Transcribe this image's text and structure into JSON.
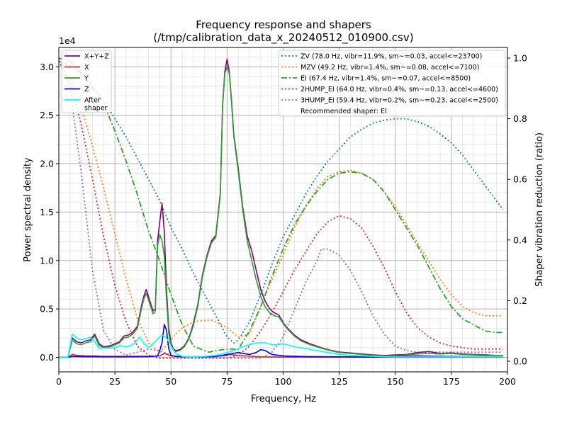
{
  "chart_data": {
    "type": "line",
    "title": [
      "Frequency response and shapers",
      "(/tmp/calibration_data_x_20240512_010900.csv)"
    ],
    "xlabel": "Frequency, Hz",
    "ylabel": "Power spectral density",
    "y2label": "Shaper vibration reduction (ratio)",
    "y_multiplier": "1e4",
    "xlim": [
      0,
      200
    ],
    "ylim": [
      -1500,
      32000
    ],
    "y2lim": [
      -0.035,
      1.035
    ],
    "xticks": [
      0,
      25,
      50,
      75,
      100,
      125,
      150,
      175,
      200
    ],
    "yticks": [
      0,
      5000,
      10000,
      15000,
      20000,
      25000,
      30000
    ],
    "ytick_labels": [
      "0.0",
      "0.5",
      "1.0",
      "1.5",
      "2.0",
      "2.5",
      "3.0"
    ],
    "y2ticks": [
      0,
      0.2,
      0.4,
      0.6,
      0.8,
      1.0
    ],
    "y2tick_labels": [
      "0.0",
      "0.2",
      "0.4",
      "0.6",
      "0.8",
      "1.0"
    ],
    "grid": true,
    "psd_legend_position": "top-left",
    "shaper_legend_position": "top-right",
    "psd_series": [
      {
        "name": "X+Y+Z",
        "color": "#800080",
        "width": 1.6,
        "x": [
          0,
          4,
          6,
          8,
          10,
          12,
          14,
          16,
          18,
          20,
          23,
          25,
          27,
          29,
          31,
          33,
          35,
          37,
          38,
          39,
          41,
          42,
          43,
          44,
          45,
          46,
          47,
          48,
          49,
          50,
          51,
          52,
          54,
          56,
          58,
          60,
          62,
          64,
          66,
          68,
          70,
          72,
          73,
          74,
          75,
          76,
          77,
          78,
          80,
          82,
          84,
          86,
          88,
          90,
          92,
          94,
          96,
          98,
          100,
          102,
          105,
          108,
          112,
          117,
          120,
          125,
          130,
          135,
          140,
          145,
          150,
          155,
          160,
          165,
          170,
          175,
          180,
          185,
          190,
          195,
          198
        ],
        "y": [
          0,
          0,
          2000,
          1600,
          1500,
          1700,
          1800,
          2400,
          1400,
          1100,
          1200,
          1400,
          1600,
          2200,
          2300,
          2600,
          3200,
          5500,
          6400,
          7000,
          5500,
          4800,
          5000,
          12000,
          14000,
          15900,
          13000,
          7000,
          3000,
          1500,
          900,
          700,
          800,
          1200,
          2000,
          3500,
          5500,
          8500,
          10500,
          12000,
          12600,
          17000,
          26000,
          29500,
          30800,
          29500,
          26500,
          23000,
          19500,
          15500,
          12500,
          11000,
          9000,
          7000,
          5800,
          5000,
          4600,
          4400,
          3600,
          3000,
          2300,
          1800,
          1400,
          1000,
          800,
          550,
          450,
          350,
          250,
          200,
          250,
          300,
          500,
          600,
          400,
          450,
          350,
          300,
          250,
          200,
          200
        ]
      },
      {
        "name": "X",
        "color": "#d62728",
        "width": 1.6,
        "x": [
          0,
          4,
          6,
          8,
          12,
          16,
          20,
          30,
          40,
          45,
          47,
          50,
          55,
          60,
          70,
          75,
          76,
          80,
          90,
          100,
          110,
          150,
          198
        ],
        "y": [
          0,
          0,
          300,
          200,
          150,
          150,
          100,
          100,
          100,
          150,
          400,
          150,
          50,
          50,
          100,
          200,
          300,
          200,
          50,
          30,
          20,
          10,
          0
        ]
      },
      {
        "name": "Y",
        "color": "#2ca02c",
        "width": 1.6,
        "x": [
          0,
          4,
          6,
          8,
          10,
          12,
          14,
          16,
          18,
          20,
          23,
          25,
          27,
          29,
          31,
          33,
          35,
          37,
          38,
          39,
          41,
          42,
          43,
          44,
          45,
          46,
          47,
          48,
          49,
          50,
          51,
          52,
          54,
          56,
          58,
          60,
          62,
          64,
          66,
          68,
          70,
          72,
          73,
          74,
          75,
          76,
          77,
          78,
          80,
          82,
          84,
          86,
          88,
          90,
          92,
          94,
          96,
          98,
          100,
          102,
          105,
          108,
          112,
          117,
          120,
          125,
          130,
          135,
          140,
          145,
          150,
          155,
          160,
          165,
          170,
          175,
          180,
          185,
          190,
          195,
          198
        ],
        "y": [
          0,
          0,
          1800,
          1400,
          1300,
          1500,
          1600,
          2200,
          1200,
          1000,
          1100,
          1300,
          1500,
          2000,
          2100,
          2400,
          3000,
          5200,
          6100,
          6600,
          5200,
          4500,
          4700,
          11500,
          12700,
          12000,
          10500,
          6000,
          2500,
          1200,
          750,
          600,
          700,
          1100,
          1900,
          3300,
          5300,
          8300,
          10300,
          11800,
          12400,
          16800,
          25800,
          29300,
          30000,
          29300,
          26300,
          22800,
          19200,
          15200,
          12000,
          10000,
          8000,
          6300,
          5200,
          4600,
          4300,
          4200,
          3500,
          2900,
          2200,
          1700,
          1300,
          950,
          750,
          500,
          400,
          300,
          200,
          150,
          200,
          250,
          350,
          400,
          350,
          400,
          300,
          250,
          200,
          200,
          200
        ]
      },
      {
        "name": "Z",
        "color": "#0000ff",
        "width": 1.6,
        "x": [
          0,
          4,
          6,
          10,
          20,
          30,
          40,
          44,
          45,
          46,
          47,
          48,
          49,
          50,
          52,
          55,
          60,
          70,
          75,
          80,
          85,
          88,
          90,
          92,
          95,
          100,
          110,
          120,
          140,
          150,
          160,
          170,
          180,
          198
        ],
        "y": [
          0,
          0,
          100,
          80,
          60,
          60,
          80,
          150,
          700,
          1500,
          3400,
          2800,
          900,
          200,
          100,
          80,
          60,
          80,
          300,
          500,
          300,
          500,
          800,
          700,
          300,
          150,
          80,
          60,
          40,
          100,
          150,
          100,
          80,
          50
        ]
      },
      {
        "name": "After\nshaper",
        "color": "#00ffff",
        "width": 1.6,
        "x": [
          0,
          4,
          6,
          8,
          10,
          12,
          14,
          16,
          18,
          20,
          22,
          25,
          27,
          30,
          32,
          34,
          36,
          38,
          40,
          42,
          44,
          46,
          48,
          50,
          52,
          55,
          58,
          60,
          65,
          70,
          75,
          78,
          80,
          82,
          85,
          88,
          90,
          92,
          95,
          98,
          100,
          105,
          110,
          115,
          120,
          125,
          130,
          140,
          150,
          160,
          170,
          180,
          190,
          198
        ],
        "y": [
          0,
          0,
          2400,
          2000,
          1800,
          1900,
          2100,
          1600,
          900,
          950,
          950,
          1000,
          1200,
          1100,
          1200,
          1500,
          2100,
          1400,
          1000,
          1400,
          1900,
          2300,
          2000,
          1200,
          400,
          100,
          50,
          50,
          100,
          200,
          500,
          700,
          900,
          1100,
          1300,
          1500,
          1500,
          1500,
          1300,
          1300,
          1400,
          1100,
          900,
          700,
          500,
          300,
          200,
          100,
          50,
          50,
          50,
          50,
          50,
          50
        ]
      }
    ],
    "shaper_series": [
      {
        "name": "ZV (78.0 Hz, vibr=11.9%, sm~=0.03, accel<=23700)",
        "color": "#1f77b4",
        "dash": "2,3",
        "x": [
          0,
          5,
          10,
          15,
          20,
          25,
          30,
          35,
          40,
          45,
          50,
          55,
          60,
          65,
          70,
          75,
          78,
          80,
          85,
          90,
          95,
          100,
          105,
          110,
          115,
          120,
          125,
          130,
          135,
          140,
          145,
          150,
          155,
          160,
          165,
          170,
          175,
          180,
          185,
          190,
          195,
          198
        ],
        "y": [
          0.99,
          0.975,
          0.945,
          0.91,
          0.86,
          0.8,
          0.74,
          0.67,
          0.6,
          0.53,
          0.44,
          0.37,
          0.29,
          0.22,
          0.15,
          0.08,
          0.06,
          0.07,
          0.13,
          0.22,
          0.32,
          0.41,
          0.48,
          0.55,
          0.61,
          0.66,
          0.7,
          0.74,
          0.765,
          0.785,
          0.795,
          0.8,
          0.8,
          0.79,
          0.775,
          0.75,
          0.72,
          0.68,
          0.63,
          0.58,
          0.53,
          0.5
        ]
      },
      {
        "name": "MZV (49.2 Hz, vibr=1.4%, sm~=0.08, accel<=7100)",
        "color": "#ff7f0e",
        "dash": "2,3",
        "x": [
          0,
          5,
          10,
          15,
          20,
          25,
          30,
          35,
          40,
          45,
          49,
          52,
          55,
          60,
          65,
          68,
          70,
          75,
          80,
          85,
          90,
          95,
          100,
          105,
          110,
          115,
          120,
          125,
          130,
          135,
          140,
          145,
          150,
          155,
          160,
          165,
          170,
          175,
          180,
          185,
          190,
          195,
          198
        ],
        "y": [
          0.99,
          0.94,
          0.84,
          0.71,
          0.57,
          0.42,
          0.27,
          0.14,
          0.06,
          0.03,
          0.06,
          0.09,
          0.11,
          0.13,
          0.135,
          0.135,
          0.13,
          0.11,
          0.08,
          0.09,
          0.18,
          0.27,
          0.35,
          0.44,
          0.51,
          0.57,
          0.61,
          0.625,
          0.63,
          0.62,
          0.6,
          0.56,
          0.51,
          0.45,
          0.39,
          0.33,
          0.27,
          0.22,
          0.18,
          0.16,
          0.15,
          0.15,
          0.15
        ]
      },
      {
        "name": "EI (67.4 Hz, vibr=1.4%, sm~=0.07, accel<=8500)",
        "color": "#2ca02c",
        "dash": "8,3,2,3",
        "x": [
          0,
          5,
          10,
          15,
          20,
          25,
          30,
          35,
          40,
          45,
          50,
          55,
          60,
          65,
          67,
          70,
          75,
          80,
          85,
          90,
          95,
          100,
          105,
          110,
          115,
          120,
          125,
          130,
          135,
          140,
          145,
          150,
          155,
          160,
          165,
          170,
          175,
          180,
          185,
          190,
          195,
          198
        ],
        "y": [
          1.0,
          0.99,
          0.95,
          0.9,
          0.85,
          0.76,
          0.66,
          0.55,
          0.43,
          0.33,
          0.22,
          0.12,
          0.05,
          0.035,
          0.03,
          0.035,
          0.04,
          0.04,
          0.1,
          0.18,
          0.28,
          0.37,
          0.45,
          0.51,
          0.56,
          0.6,
          0.62,
          0.625,
          0.62,
          0.6,
          0.56,
          0.5,
          0.44,
          0.38,
          0.31,
          0.24,
          0.18,
          0.14,
          0.12,
          0.1,
          0.095,
          0.095
        ]
      },
      {
        "name": "2HUMP_EI (64.0 Hz, vibr=0.4%, sm~=0.13, accel<=4600)",
        "color": "#d62728",
        "dash": "2,3",
        "x": [
          0,
          5,
          10,
          15,
          20,
          25,
          30,
          35,
          40,
          45,
          50,
          55,
          60,
          64,
          70,
          75,
          80,
          85,
          90,
          95,
          100,
          105,
          110,
          115,
          120,
          125,
          130,
          135,
          140,
          145,
          150,
          155,
          160,
          165,
          170,
          175,
          180,
          185,
          190,
          195,
          198
        ],
        "y": [
          0.99,
          0.92,
          0.78,
          0.6,
          0.41,
          0.25,
          0.13,
          0.05,
          0.02,
          0.01,
          0.01,
          0.01,
          0.01,
          0.01,
          0.01,
          0.01,
          0.02,
          0.05,
          0.1,
          0.16,
          0.23,
          0.3,
          0.36,
          0.42,
          0.46,
          0.48,
          0.47,
          0.44,
          0.38,
          0.31,
          0.23,
          0.16,
          0.11,
          0.08,
          0.06,
          0.05,
          0.045,
          0.04,
          0.04,
          0.04,
          0.04
        ]
      },
      {
        "name": "3HUMP_EI (59.4 Hz, vibr=0.2%, sm~=0.23, accel<=2500)",
        "color": "#9467bd",
        "dash": "2,3",
        "x": [
          0,
          5,
          10,
          15,
          20,
          25,
          30,
          35,
          40,
          45,
          50,
          55,
          60,
          65,
          70,
          75,
          80,
          85,
          90,
          95,
          100,
          105,
          110,
          115,
          117,
          120,
          125,
          130,
          135,
          140,
          145,
          150,
          155,
          160,
          165,
          170,
          175,
          180,
          185,
          190,
          195,
          198
        ],
        "y": [
          1.0,
          0.9,
          0.62,
          0.3,
          0.1,
          0.04,
          0.02,
          0.03,
          0.04,
          0.035,
          0.02,
          0.01,
          0.01,
          0.01,
          0.01,
          0.01,
          0.01,
          0.01,
          0.01,
          0.03,
          0.08,
          0.17,
          0.26,
          0.33,
          0.37,
          0.37,
          0.35,
          0.3,
          0.23,
          0.15,
          0.09,
          0.05,
          0.035,
          0.03,
          0.03,
          0.03,
          0.03,
          0.03,
          0.03,
          0.03,
          0.03,
          0.03
        ]
      }
    ],
    "recommendation_text": "Recommended shaper: EI"
  }
}
